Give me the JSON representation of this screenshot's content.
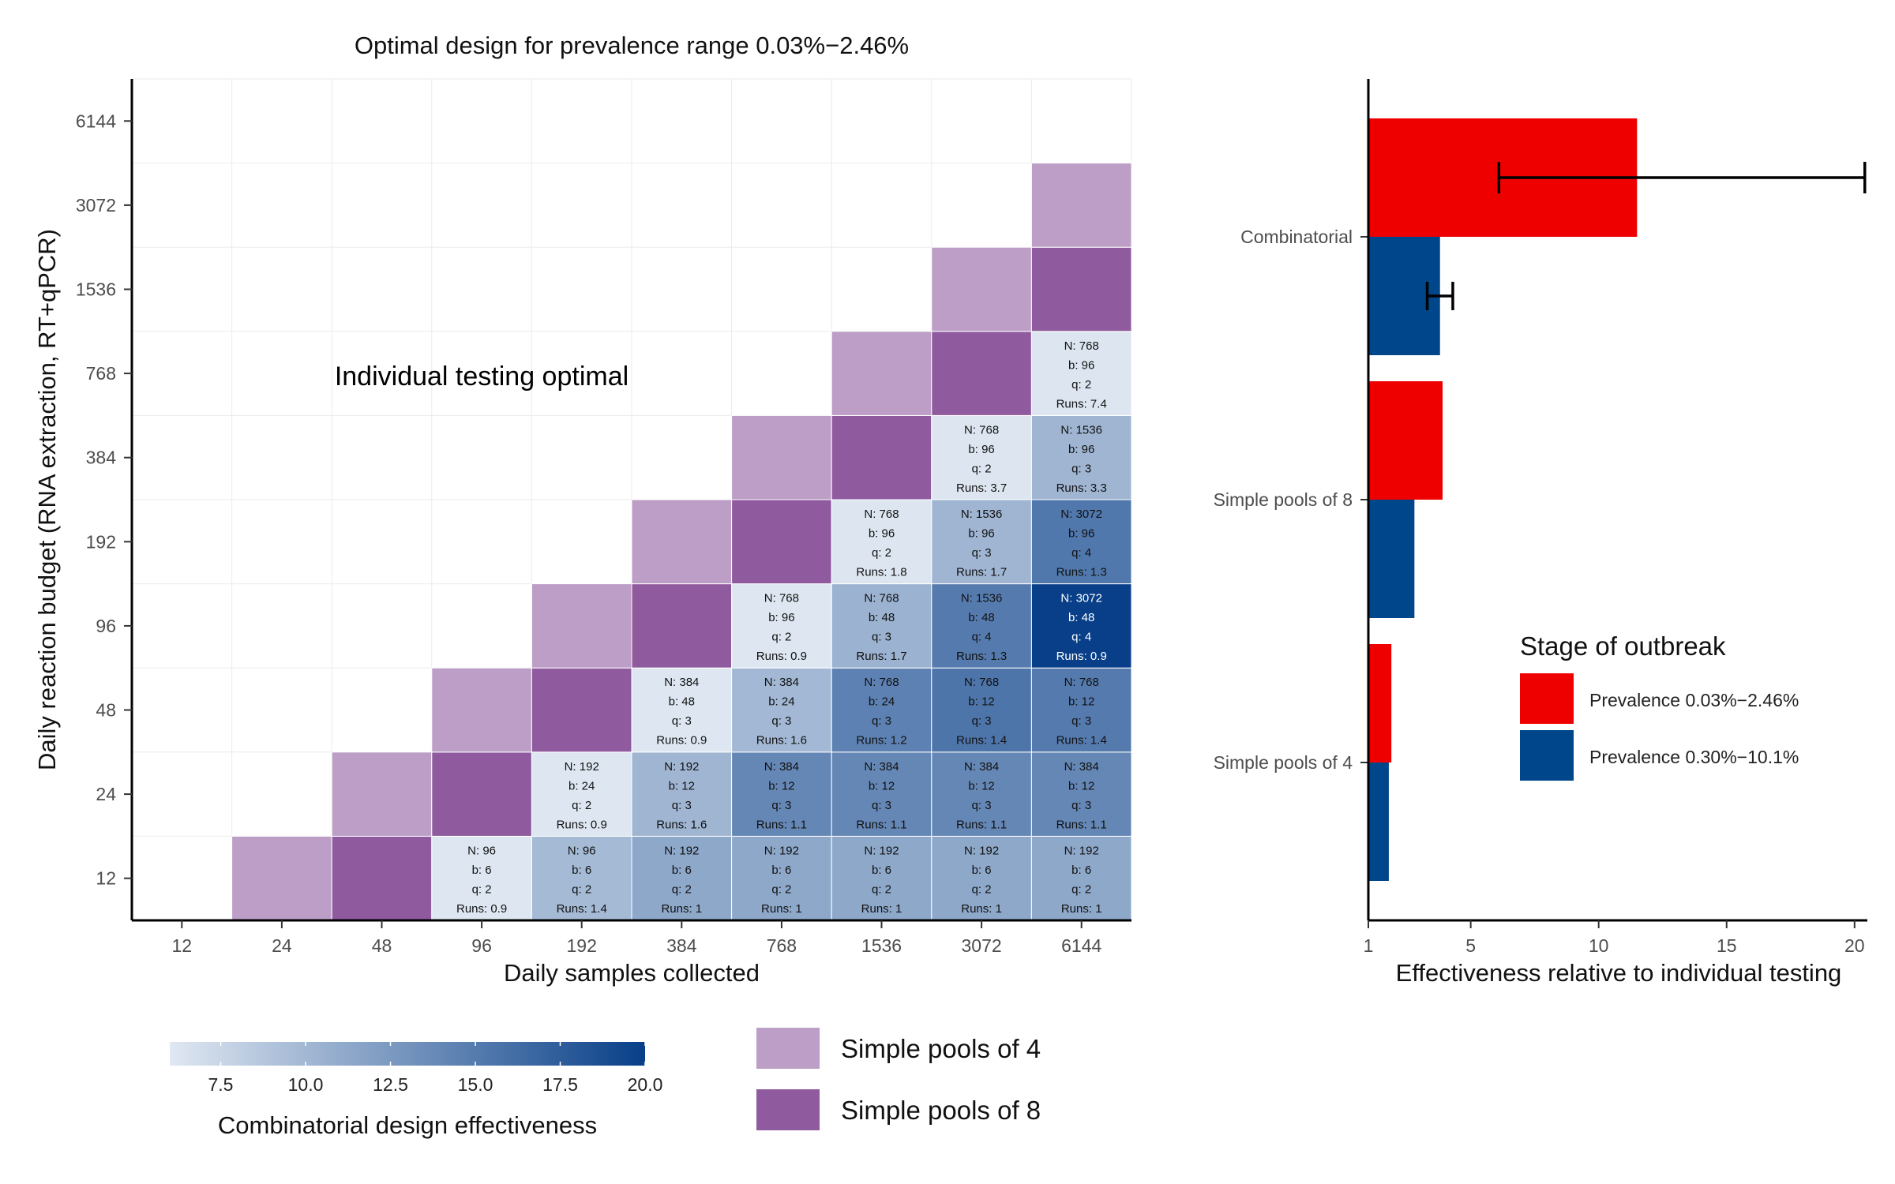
{
  "chart_data": [
    {
      "type": "heatmap",
      "title": "Optimal design for prevalence range 0.03%−2.46%",
      "xlabel": "Daily samples collected",
      "ylabel": "Daily reaction budget (RNA extraction, RT+qPCR)",
      "x_categories": [
        "12",
        "24",
        "48",
        "96",
        "192",
        "384",
        "768",
        "1536",
        "3072",
        "6144"
      ],
      "y_categories": [
        "12",
        "24",
        "48",
        "96",
        "192",
        "384",
        "768",
        "1536",
        "3072",
        "6144"
      ],
      "annotation": "Individual testing optimal",
      "colorbar": {
        "label": "Combinatorial design effectiveness",
        "min": 6.0,
        "max": 20.0,
        "ticks": [
          "7.5",
          "10.0",
          "12.5",
          "15.0",
          "17.5",
          "20.0"
        ],
        "low_color": "#e0e8f2",
        "high_color": "#083f88"
      },
      "legend": [
        {
          "label": "Simple pools of 4",
          "color": "#bc9ec6"
        },
        {
          "label": "Simple pools of 8",
          "color": "#8f5a9e"
        }
      ],
      "cells": [
        {
          "x": "24",
          "y": "12",
          "type": "pool4"
        },
        {
          "x": "48",
          "y": "12",
          "type": "pool8"
        },
        {
          "x": "96",
          "y": "12",
          "type": "comb",
          "v": 6.1,
          "lines": [
            "N: 96",
            "b: 6",
            "q: 2",
            "Runs: 0.9"
          ]
        },
        {
          "x": "192",
          "y": "12",
          "type": "comb",
          "v": 9.8,
          "lines": [
            "N: 96",
            "b: 6",
            "q: 2",
            "Runs: 1.4"
          ]
        },
        {
          "x": "384",
          "y": "12",
          "type": "comb",
          "v": 11.3,
          "lines": [
            "N: 192",
            "b: 6",
            "q: 2",
            "Runs: 1"
          ]
        },
        {
          "x": "768",
          "y": "12",
          "type": "comb",
          "v": 11.3,
          "lines": [
            "N: 192",
            "b: 6",
            "q: 2",
            "Runs: 1"
          ]
        },
        {
          "x": "1536",
          "y": "12",
          "type": "comb",
          "v": 11.3,
          "lines": [
            "N: 192",
            "b: 6",
            "q: 2",
            "Runs: 1"
          ]
        },
        {
          "x": "3072",
          "y": "12",
          "type": "comb",
          "v": 11.3,
          "lines": [
            "N: 192",
            "b: 6",
            "q: 2",
            "Runs: 1"
          ]
        },
        {
          "x": "6144",
          "y": "12",
          "type": "comb",
          "v": 11.3,
          "lines": [
            "N: 192",
            "b: 6",
            "q: 2",
            "Runs: 1"
          ]
        },
        {
          "x": "48",
          "y": "24",
          "type": "pool4"
        },
        {
          "x": "96",
          "y": "24",
          "type": "pool8"
        },
        {
          "x": "192",
          "y": "24",
          "type": "comb",
          "v": 6.1,
          "lines": [
            "N: 192",
            "b: 24",
            "q: 2",
            "Runs: 0.9"
          ]
        },
        {
          "x": "384",
          "y": "24",
          "type": "comb",
          "v": 10.2,
          "lines": [
            "N: 192",
            "b: 12",
            "q: 3",
            "Runs: 1.6"
          ]
        },
        {
          "x": "768",
          "y": "24",
          "type": "comb",
          "v": 14.0,
          "lines": [
            "N: 384",
            "b: 12",
            "q: 3",
            "Runs: 1.1"
          ]
        },
        {
          "x": "1536",
          "y": "24",
          "type": "comb",
          "v": 14.0,
          "lines": [
            "N: 384",
            "b: 12",
            "q: 3",
            "Runs: 1.1"
          ]
        },
        {
          "x": "3072",
          "y": "24",
          "type": "comb",
          "v": 14.0,
          "lines": [
            "N: 384",
            "b: 12",
            "q: 3",
            "Runs: 1.1"
          ]
        },
        {
          "x": "6144",
          "y": "24",
          "type": "comb",
          "v": 14.0,
          "lines": [
            "N: 384",
            "b: 12",
            "q: 3",
            "Runs: 1.1"
          ]
        },
        {
          "x": "96",
          "y": "48",
          "type": "pool4"
        },
        {
          "x": "192",
          "y": "48",
          "type": "pool8"
        },
        {
          "x": "384",
          "y": "48",
          "type": "comb",
          "v": 6.1,
          "lines": [
            "N: 384",
            "b: 48",
            "q: 3",
            "Runs: 0.9"
          ]
        },
        {
          "x": "768",
          "y": "48",
          "type": "comb",
          "v": 10.0,
          "lines": [
            "N: 384",
            "b: 24",
            "q: 3",
            "Runs: 1.6"
          ]
        },
        {
          "x": "1536",
          "y": "48",
          "type": "comb",
          "v": 14.5,
          "lines": [
            "N: 768",
            "b: 24",
            "q: 3",
            "Runs: 1.2"
          ]
        },
        {
          "x": "3072",
          "y": "48",
          "type": "comb",
          "v": 15.5,
          "lines": [
            "N: 768",
            "b: 12",
            "q: 3",
            "Runs: 1.4"
          ]
        },
        {
          "x": "6144",
          "y": "48",
          "type": "comb",
          "v": 15.0,
          "lines": [
            "N: 768",
            "b: 12",
            "q: 3",
            "Runs: 1.4"
          ]
        },
        {
          "x": "192",
          "y": "96",
          "type": "pool4"
        },
        {
          "x": "384",
          "y": "96",
          "type": "pool8"
        },
        {
          "x": "768",
          "y": "96",
          "type": "comb",
          "v": 6.1,
          "lines": [
            "N: 768",
            "b: 96",
            "q: 2",
            "Runs: 0.9"
          ]
        },
        {
          "x": "1536",
          "y": "96",
          "type": "comb",
          "v": 10.5,
          "lines": [
            "N: 768",
            "b: 48",
            "q: 3",
            "Runs: 1.7"
          ]
        },
        {
          "x": "3072",
          "y": "96",
          "type": "comb",
          "v": 15.0,
          "lines": [
            "N: 1536",
            "b: 48",
            "q: 4",
            "Runs: 1.3"
          ]
        },
        {
          "x": "6144",
          "y": "96",
          "type": "comb",
          "v": 20.0,
          "lines": [
            "N: 3072",
            "b: 48",
            "q: 4",
            "Runs: 0.9"
          ]
        },
        {
          "x": "384",
          "y": "192",
          "type": "pool4"
        },
        {
          "x": "768",
          "y": "192",
          "type": "pool8"
        },
        {
          "x": "1536",
          "y": "192",
          "type": "comb",
          "v": 6.2,
          "lines": [
            "N: 768",
            "b: 96",
            "q: 2",
            "Runs: 1.8"
          ]
        },
        {
          "x": "3072",
          "y": "192",
          "type": "comb",
          "v": 10.2,
          "lines": [
            "N: 1536",
            "b: 96",
            "q: 3",
            "Runs: 1.7"
          ]
        },
        {
          "x": "6144",
          "y": "192",
          "type": "comb",
          "v": 15.3,
          "lines": [
            "N: 3072",
            "b: 96",
            "q: 4",
            "Runs: 1.3"
          ]
        },
        {
          "x": "768",
          "y": "384",
          "type": "pool4"
        },
        {
          "x": "1536",
          "y": "384",
          "type": "pool8"
        },
        {
          "x": "3072",
          "y": "384",
          "type": "comb",
          "v": 6.2,
          "lines": [
            "N: 768",
            "b: 96",
            "q: 2",
            "Runs: 3.7"
          ]
        },
        {
          "x": "6144",
          "y": "384",
          "type": "comb",
          "v": 10.2,
          "lines": [
            "N: 1536",
            "b: 96",
            "q: 3",
            "Runs: 3.3"
          ]
        },
        {
          "x": "1536",
          "y": "768",
          "type": "pool4"
        },
        {
          "x": "3072",
          "y": "768",
          "type": "pool8"
        },
        {
          "x": "6144",
          "y": "768",
          "type": "comb",
          "v": 6.2,
          "lines": [
            "N: 768",
            "b: 96",
            "q: 2",
            "Runs: 7.4"
          ]
        },
        {
          "x": "3072",
          "y": "1536",
          "type": "pool4"
        },
        {
          "x": "6144",
          "y": "1536",
          "type": "pool8"
        },
        {
          "x": "6144",
          "y": "3072",
          "type": "pool4"
        }
      ]
    },
    {
      "type": "bar",
      "orientation": "horizontal",
      "xlabel": "Effectiveness relative to individual testing",
      "ylabel": "",
      "categories": [
        "Combinatorial",
        "Simple pools of 8",
        "Simple pools of 4"
      ],
      "xlim": [
        1,
        20.5
      ],
      "xticks": [
        "1",
        "5",
        "10",
        "15",
        "20"
      ],
      "legend_title": "Stage of outbreak",
      "series": [
        {
          "name": "Prevalence 0.03%−2.46%",
          "color": "#ee0000",
          "values": [
            11.5,
            3.9,
            1.9
          ],
          "error_low": [
            6.1,
            null,
            null
          ],
          "error_high": [
            20.4,
            null,
            null
          ]
        },
        {
          "name": "Prevalence 0.30%−10.1%",
          "color": "#00468b",
          "values": [
            3.8,
            2.8,
            1.8
          ],
          "error_low": [
            3.3,
            null,
            null
          ],
          "error_high": [
            4.3,
            null,
            null
          ]
        }
      ]
    }
  ]
}
